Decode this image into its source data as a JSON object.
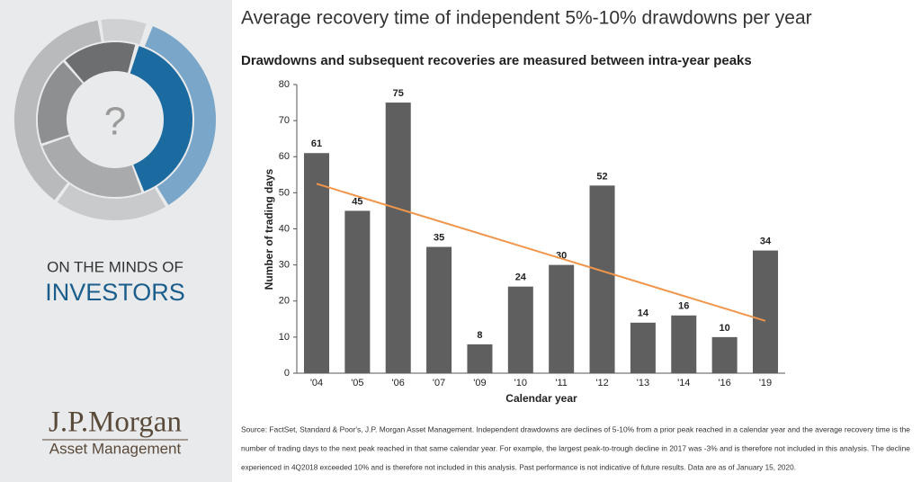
{
  "sidebar": {
    "icon_text": "?",
    "heading": "ON THE MINDS OF",
    "subheading": "INVESTORS",
    "brand": "J.P.Morgan",
    "division": "Asset Management"
  },
  "chart_data": {
    "type": "bar",
    "title": "Average recovery time of independent 5%-10% drawdowns per year",
    "subtitle": "Drawdowns and subsequent recoveries are measured between intra-year peaks",
    "y_label": "Number of trading days",
    "x_label": "Calendar year",
    "categories": [
      "'04",
      "'05",
      "'06",
      "'07",
      "'09",
      "'10",
      "'11",
      "'12",
      "'13",
      "'14",
      "'16",
      "'19"
    ],
    "values": [
      61,
      45,
      75,
      35,
      8,
      24,
      30,
      52,
      14,
      16,
      10,
      34
    ],
    "color": "#5f5f5f",
    "trend_values": [
      52.5,
      14.5
    ],
    "trend_color": "#f0954a",
    "ylim": [
      0,
      80
    ],
    "yticks": [
      0,
      10,
      20,
      30,
      40,
      50,
      60,
      70,
      80
    ],
    "grid": false
  },
  "source": [
    "Source: FactSet, Standard & Poor's, J.P. Morgan Asset Management. Independent drawdowns are declines of 5-10% from a prior peak reached in a calendar year and the average recovery time is the",
    "number of trading days to the next peak reached in that same calendar year. For example, the largest peak-to-trough decline in 2017 was -3% and is therefore not included in this analysis. The decline",
    "experienced in 4Q2018 exceeded 10% and is therefore not included in this analysis. Past performance is not indicative of future results. Data are as of January 15, 2020."
  ]
}
